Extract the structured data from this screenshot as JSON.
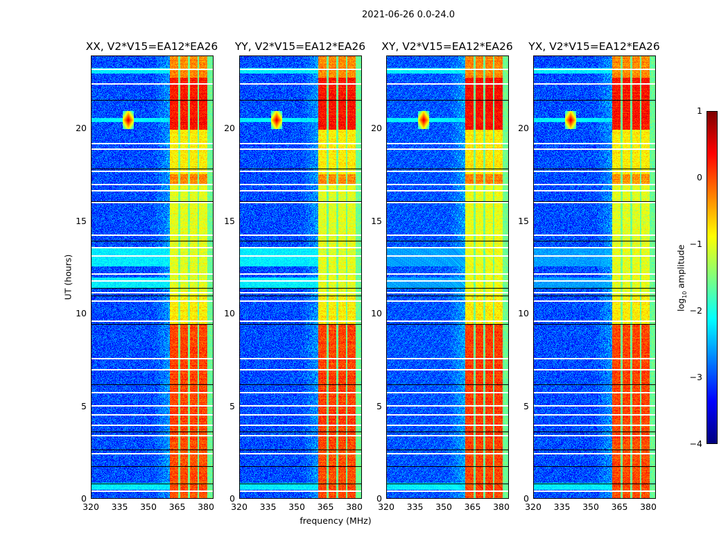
{
  "chart_data": {
    "type": "heatmap",
    "suptitle": "2021-06-26 0.0-24.0",
    "panels": [
      {
        "title": "XX, V2*V15=EA12*EA26",
        "seed": 11,
        "broadband_cyan": true
      },
      {
        "title": "YY, V2*V15=EA12*EA26",
        "seed": 23,
        "broadband_cyan": true
      },
      {
        "title": "XY, V2*V15=EA12*EA26",
        "seed": 37,
        "broadband_cyan": false
      },
      {
        "title": "YX, V2*V15=EA12*EA26",
        "seed": 51,
        "broadband_cyan": false
      }
    ],
    "xlabel": "frequency (MHz)",
    "ylabel": "UT (hours)",
    "xlim": [
      320,
      384
    ],
    "ylim": [
      0,
      24
    ],
    "xticks": [
      "320",
      "335",
      "350",
      "365",
      "380"
    ],
    "yticks": [
      "0",
      "5",
      "10",
      "15",
      "20"
    ],
    "colormap": "jet",
    "colorbar": {
      "label_prefix": "log",
      "label_sub": "10",
      "label_suffix": " amplitude",
      "range": [
        -4,
        1
      ],
      "ticks": [
        "1",
        "0",
        "−1",
        "−2",
        "−3",
        "−4"
      ]
    },
    "background_level": -3.0,
    "rfi_band_mhz": [
      360.5,
      383
    ],
    "rfi_subchannels_mhz": [
      [
        360.5,
        365
      ],
      [
        366,
        370
      ],
      [
        371,
        375
      ],
      [
        376,
        380
      ]
    ],
    "rfi_band_levels": [
      {
        "t": [
          0,
          3.2
        ],
        "level": 0.0
      },
      {
        "t": [
          3.2,
          9.5
        ],
        "level": 0.05
      },
      {
        "t": [
          9.5,
          11
        ],
        "level": -0.8
      },
      {
        "t": [
          11,
          17
        ],
        "level": -1.0
      },
      {
        "t": [
          17,
          17.6
        ],
        "level": -0.3
      },
      {
        "t": [
          17.6,
          20
        ],
        "level": -0.8
      },
      {
        "t": [
          20,
          22.8
        ],
        "level": 0.3
      },
      {
        "t": [
          22.8,
          24
        ],
        "level": -0.3
      }
    ],
    "point_source": {
      "freq_mhz": 339,
      "t_hours": 20.5,
      "level": 0.6
    },
    "flagged_white_hours": [
      23.26,
      22.47,
      19.25,
      18.95,
      17.75,
      17.04,
      16.7,
      16.07,
      14.31,
      13.63,
      13.18,
      12.21,
      11.83,
      11.2,
      10.75,
      9.66,
      7.64,
      7.04,
      5.81,
      5.09,
      4.61,
      4.04,
      3.48,
      2.51,
      0.49
    ],
    "flagged_black_hours": [
      21.57,
      17.87,
      16.1,
      13.97,
      11.42,
      11.01,
      9.48,
      6.22,
      3.67,
      2.7,
      1.8,
      0.86
    ],
    "broadband_hours": [
      [
        12.6,
        13.6
      ],
      [
        11.4,
        12.0
      ],
      [
        0.55,
        0.9
      ],
      [
        23.0,
        23.3
      ],
      [
        20.4,
        20.6
      ]
    ]
  }
}
